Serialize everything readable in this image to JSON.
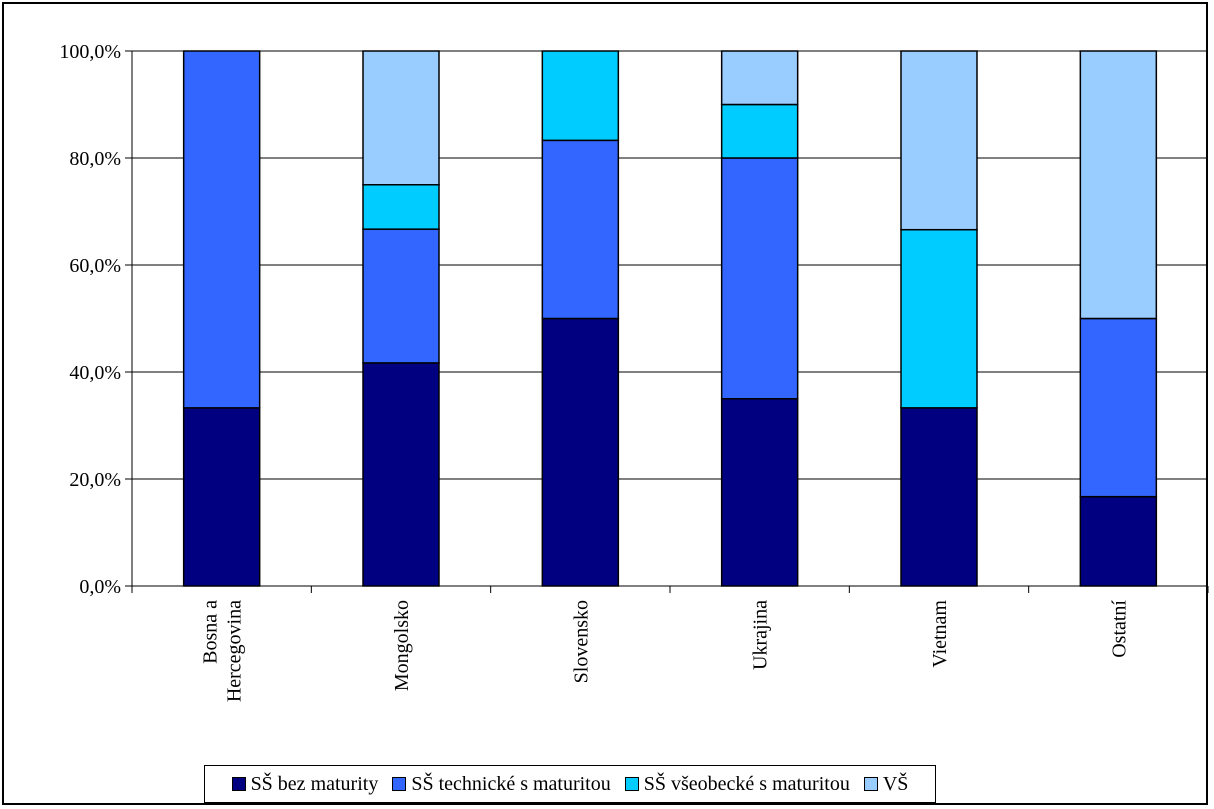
{
  "chart_data": {
    "type": "bar",
    "stacked": true,
    "percent": true,
    "categories": [
      "Bosna a Hercegovina",
      "Mongolsko",
      "Slovensko",
      "Ukrajina",
      "Vietnam",
      "Ostatní"
    ],
    "category_label_lines": [
      [
        "Bosna a",
        "Hercegovina"
      ],
      [
        "Mongolsko"
      ],
      [
        "Slovensko"
      ],
      [
        "Ukrajina"
      ],
      [
        "Vietnam"
      ],
      [
        "Ostatní"
      ]
    ],
    "series": [
      {
        "name": "SŠ bez maturity",
        "color": "#000080",
        "values": [
          33.3,
          41.7,
          50.0,
          35.0,
          33.3,
          16.7
        ]
      },
      {
        "name": "SŠ technické s maturitou",
        "color": "#3366ff",
        "values": [
          66.7,
          25.0,
          33.3,
          45.0,
          0.0,
          33.3
        ]
      },
      {
        "name": "SŠ všeobecké s maturitou",
        "color": "#00ccff",
        "values": [
          0.0,
          8.3,
          16.7,
          10.0,
          33.3,
          0.0
        ]
      },
      {
        "name": "VŠ",
        "color": "#99ccff",
        "values": [
          0.0,
          25.0,
          0.0,
          10.0,
          33.4,
          50.0
        ]
      }
    ],
    "y_ticks": [
      "0,0%",
      "20,0%",
      "40,0%",
      "60,0%",
      "80,0%",
      "100,0%"
    ],
    "ylim": [
      0,
      100
    ],
    "grid": true,
    "legend_position": "bottom"
  }
}
